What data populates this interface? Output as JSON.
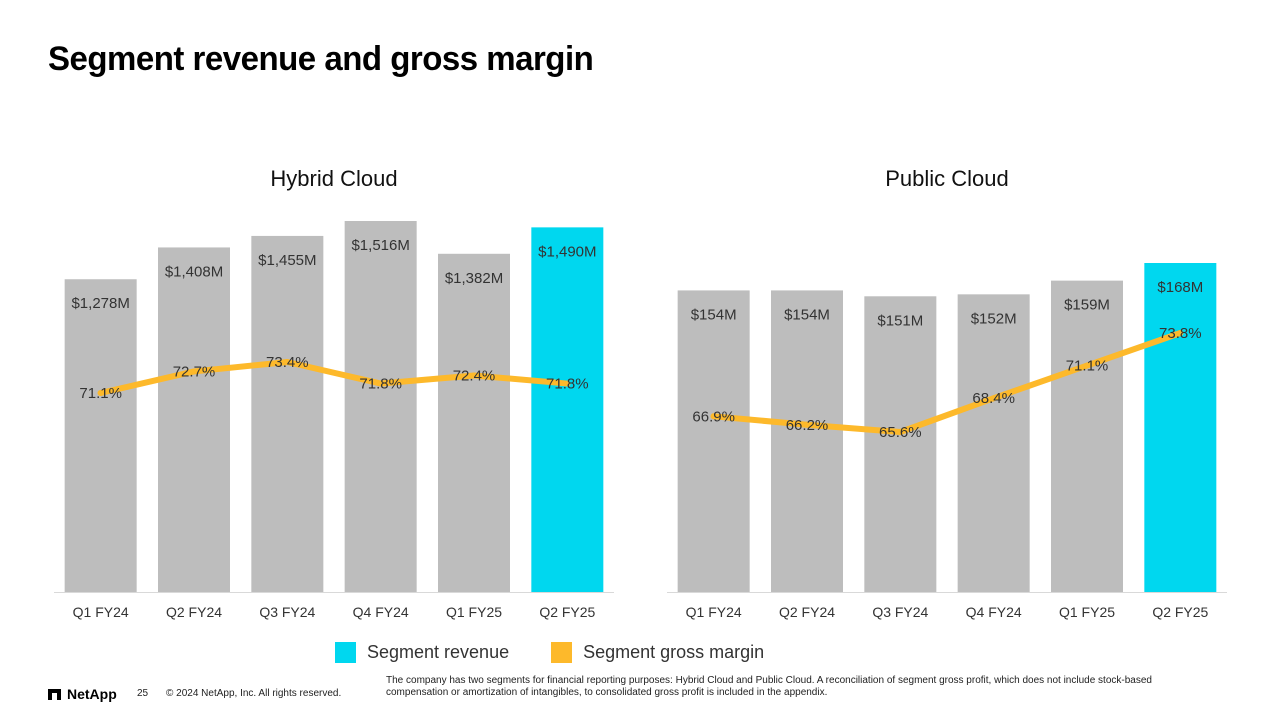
{
  "page": {
    "title": "Segment revenue and gross margin",
    "logo_text": "NetApp",
    "page_number": "25",
    "copyright": "© 2024 NetApp, Inc. All rights reserved.",
    "footnote": "The company has two segments for financial reporting purposes: Hybrid Cloud and Public Cloud. A reconciliation of segment gross profit, which does not include stock-based compensation or amortization of intangibles, to consolidated gross profit is included in the appendix."
  },
  "legend": [
    {
      "label": "Segment revenue",
      "color": "#00D7EF"
    },
    {
      "label": "Segment gross margin",
      "color": "#FDB92B"
    }
  ],
  "colors": {
    "bar": "#BDBDBD",
    "highlight": "#00D7EF",
    "line": "#FDB92B",
    "axis": "#D9D9D9",
    "label": "#333333"
  },
  "chart_data": [
    {
      "type": "bar",
      "title": "Hybrid Cloud",
      "categories": [
        "Q1 FY24",
        "Q2 FY24",
        "Q3 FY24",
        "Q4 FY24",
        "Q1 FY25",
        "Q2 FY25"
      ],
      "series": [
        {
          "name": "Segment revenue",
          "unit": "$M",
          "values": [
            1278,
            1408,
            1455,
            1516,
            1382,
            1490
          ],
          "labels": [
            "$1,278M",
            "$1,408M",
            "$1,455M",
            "$1,516M",
            "$1,382M",
            "$1,490M"
          ]
        },
        {
          "name": "Segment gross margin",
          "unit": "%",
          "values": [
            71.1,
            72.7,
            73.4,
            71.8,
            72.4,
            71.8
          ],
          "labels": [
            "71.1%",
            "72.7%",
            "73.4%",
            "71.8%",
            "72.4%",
            "71.8%"
          ]
        }
      ],
      "highlight_index": 5,
      "ylim_revenue": [
        0,
        1516
      ],
      "ylim_margin": [
        55,
        80
      ]
    },
    {
      "type": "bar",
      "title": "Public Cloud",
      "categories": [
        "Q1 FY24",
        "Q2 FY24",
        "Q3 FY24",
        "Q4 FY24",
        "Q1 FY25",
        "Q2 FY25"
      ],
      "series": [
        {
          "name": "Segment revenue",
          "unit": "$M",
          "values": [
            154,
            154,
            151,
            152,
            159,
            168
          ],
          "labels": [
            "$154M",
            "$154M",
            "$151M",
            "$152M",
            "$159M",
            "$168M"
          ]
        },
        {
          "name": "Segment gross margin",
          "unit": "%",
          "values": [
            66.9,
            66.2,
            65.6,
            68.4,
            71.1,
            73.8
          ],
          "labels": [
            "66.9%",
            "66.2%",
            "65.6%",
            "68.4%",
            "71.1%",
            "73.8%"
          ]
        }
      ],
      "highlight_index": 5,
      "ylim_revenue": [
        0,
        168
      ],
      "ylim_margin": [
        50,
        80
      ]
    }
  ]
}
